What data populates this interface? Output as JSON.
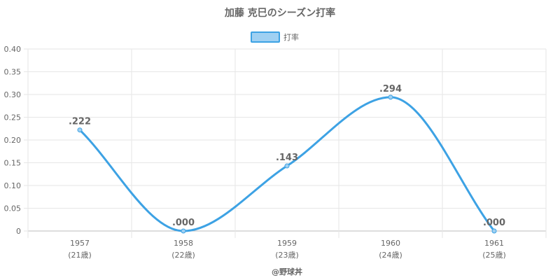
{
  "chart_data": {
    "type": "line",
    "title": "加藤 克巳のシーズン打率",
    "categories": [
      "1957",
      "1958",
      "1959",
      "1960",
      "1961"
    ],
    "ages": [
      "(21歳)",
      "(22歳)",
      "(23歳)",
      "(24歳)",
      "(25歳)"
    ],
    "series": [
      {
        "name": "打率",
        "values": [
          0.222,
          0.0,
          0.143,
          0.294,
          0.0
        ],
        "labels": [
          ".222",
          ".000",
          ".143",
          ".294",
          ".000"
        ],
        "color": "#3da2e4",
        "fill_color": "#9fd0f2"
      }
    ],
    "ylim": [
      0,
      0.4
    ],
    "yticks": [
      "0",
      "0.05",
      "0.10",
      "0.15",
      "0.20",
      "0.25",
      "0.30",
      "0.35",
      "0.40"
    ],
    "grid": true,
    "legend_position": "top-center",
    "xlabel": "",
    "ylabel": ""
  },
  "footer": "@野球丼"
}
